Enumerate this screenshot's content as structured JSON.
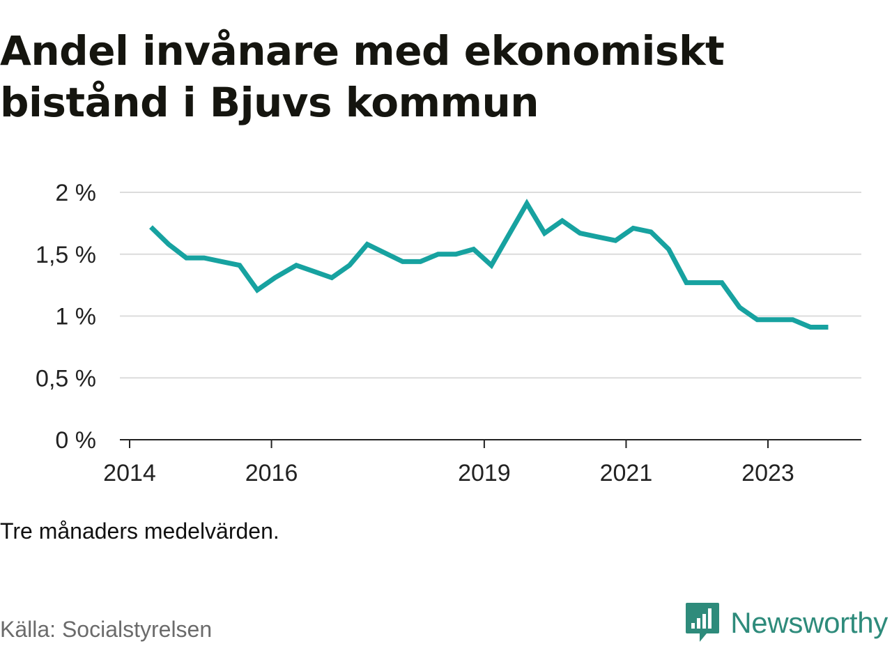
{
  "title": "Andel invånare med ekonomiskt bistånd i Bjuvs kommun",
  "note": "Tre månaders medelvärden.",
  "source": "Källa: Socialstyrelsen",
  "brand": {
    "name": "Newsworthy",
    "icon": "newsworthy-logo-icon",
    "color": "#2e8b7b"
  },
  "chart_data": {
    "type": "line",
    "x_axis": {
      "ticks": [
        2014,
        2016,
        2019,
        2021,
        2023
      ],
      "tick_labels": [
        "2014",
        "2016",
        "2019",
        "2021",
        "2023"
      ],
      "range": [
        2014,
        2024.5
      ]
    },
    "y_axis": {
      "ticks": [
        0,
        0.5,
        1,
        1.5,
        2
      ],
      "tick_labels": [
        "0 %",
        "0,5 %",
        "1 %",
        "1,5 %",
        "2 %"
      ],
      "range": [
        0,
        2
      ],
      "unit": "%"
    },
    "grid": true,
    "legend": "none",
    "series": [
      {
        "color": "#17a2a0",
        "x": [
          2014.3,
          2014.55,
          2014.8,
          2015.05,
          2015.3,
          2015.55,
          2015.8,
          2016.05,
          2016.35,
          2016.6,
          2016.85,
          2017.1,
          2017.35,
          2017.6,
          2017.85,
          2018.1,
          2018.35,
          2018.6,
          2018.85,
          2019.1,
          2019.35,
          2019.6,
          2019.85,
          2020.1,
          2020.35,
          2020.6,
          2020.85,
          2021.1,
          2021.35,
          2021.6,
          2021.85,
          2022.1,
          2022.35,
          2022.6,
          2022.85,
          2023.1,
          2023.35,
          2023.6,
          2023.85
        ],
        "y": [
          1.72,
          1.58,
          1.47,
          1.47,
          1.44,
          1.41,
          1.21,
          1.31,
          1.41,
          1.36,
          1.31,
          1.41,
          1.58,
          1.51,
          1.44,
          1.44,
          1.5,
          1.5,
          1.54,
          1.41,
          1.66,
          1.91,
          1.67,
          1.77,
          1.67,
          1.64,
          1.61,
          1.71,
          1.68,
          1.54,
          1.27,
          1.27,
          1.27,
          1.07,
          0.97,
          0.97,
          0.97,
          0.91,
          0.91
        ]
      }
    ]
  }
}
